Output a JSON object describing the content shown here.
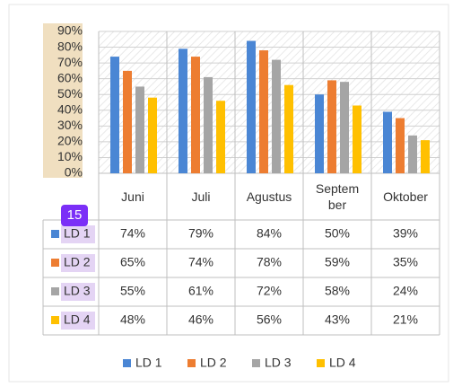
{
  "badge": "15",
  "chart_data": {
    "type": "bar",
    "categories": [
      "Juni",
      "Juli",
      "Agustus",
      "Septem ber",
      "Oktober"
    ],
    "series": [
      {
        "name": "LD 1",
        "color": "#4a86d4",
        "values": [
          74,
          79,
          84,
          50,
          39
        ],
        "value_labels": [
          "74%",
          "79%",
          "84%",
          "50%",
          "39%"
        ]
      },
      {
        "name": "LD 2",
        "color": "#ed7d31",
        "values": [
          65,
          74,
          78,
          59,
          35
        ],
        "value_labels": [
          "65%",
          "74%",
          "78%",
          "59%",
          "35%"
        ]
      },
      {
        "name": "LD 3",
        "color": "#a5a5a5",
        "values": [
          55,
          61,
          72,
          58,
          24
        ],
        "value_labels": [
          "55%",
          "61%",
          "72%",
          "58%",
          "24%"
        ]
      },
      {
        "name": "LD 4",
        "color": "#ffc000",
        "values": [
          48,
          46,
          56,
          43,
          21
        ],
        "value_labels": [
          "48%",
          "46%",
          "56%",
          "43%",
          "21%"
        ]
      }
    ],
    "ylim": [
      0,
      90
    ],
    "yticks": [
      {
        "value": 0,
        "label": "0%"
      },
      {
        "value": 10,
        "label": "10%"
      },
      {
        "value": 20,
        "label": "20%"
      },
      {
        "value": 30,
        "label": "30%"
      },
      {
        "value": 40,
        "label": "40%"
      },
      {
        "value": 50,
        "label": "50%"
      },
      {
        "value": 60,
        "label": "60%"
      },
      {
        "value": 70,
        "label": "70%"
      },
      {
        "value": 80,
        "label": "80%"
      },
      {
        "value": 90,
        "label": "90%"
      }
    ],
    "grid": true,
    "legend": "bottom"
  }
}
